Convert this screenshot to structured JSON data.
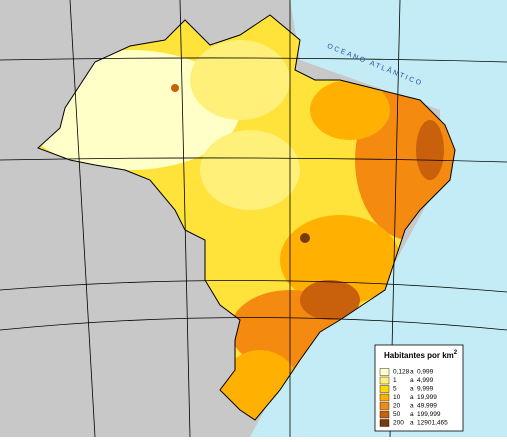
{
  "map": {
    "ocean_label": "OCEANO ATLÂNTICO"
  },
  "legend": {
    "title": "Habitantes por km",
    "title_sup": "2",
    "connector": "a",
    "items": [
      {
        "from": "0,128",
        "to": "0,999",
        "color": "#ffffc8"
      },
      {
        "from": "1",
        "to": "4,999",
        "color": "#fff07a"
      },
      {
        "from": "5",
        "to": "9,999",
        "color": "#ffd800"
      },
      {
        "from": "10",
        "to": "19,999",
        "color": "#ffb000"
      },
      {
        "from": "20",
        "to": "49,999",
        "color": "#f58a10"
      },
      {
        "from": "50",
        "to": "199,999",
        "color": "#c8600c"
      },
      {
        "from": "200",
        "to": "12901,465",
        "color": "#7a3a08"
      }
    ]
  }
}
